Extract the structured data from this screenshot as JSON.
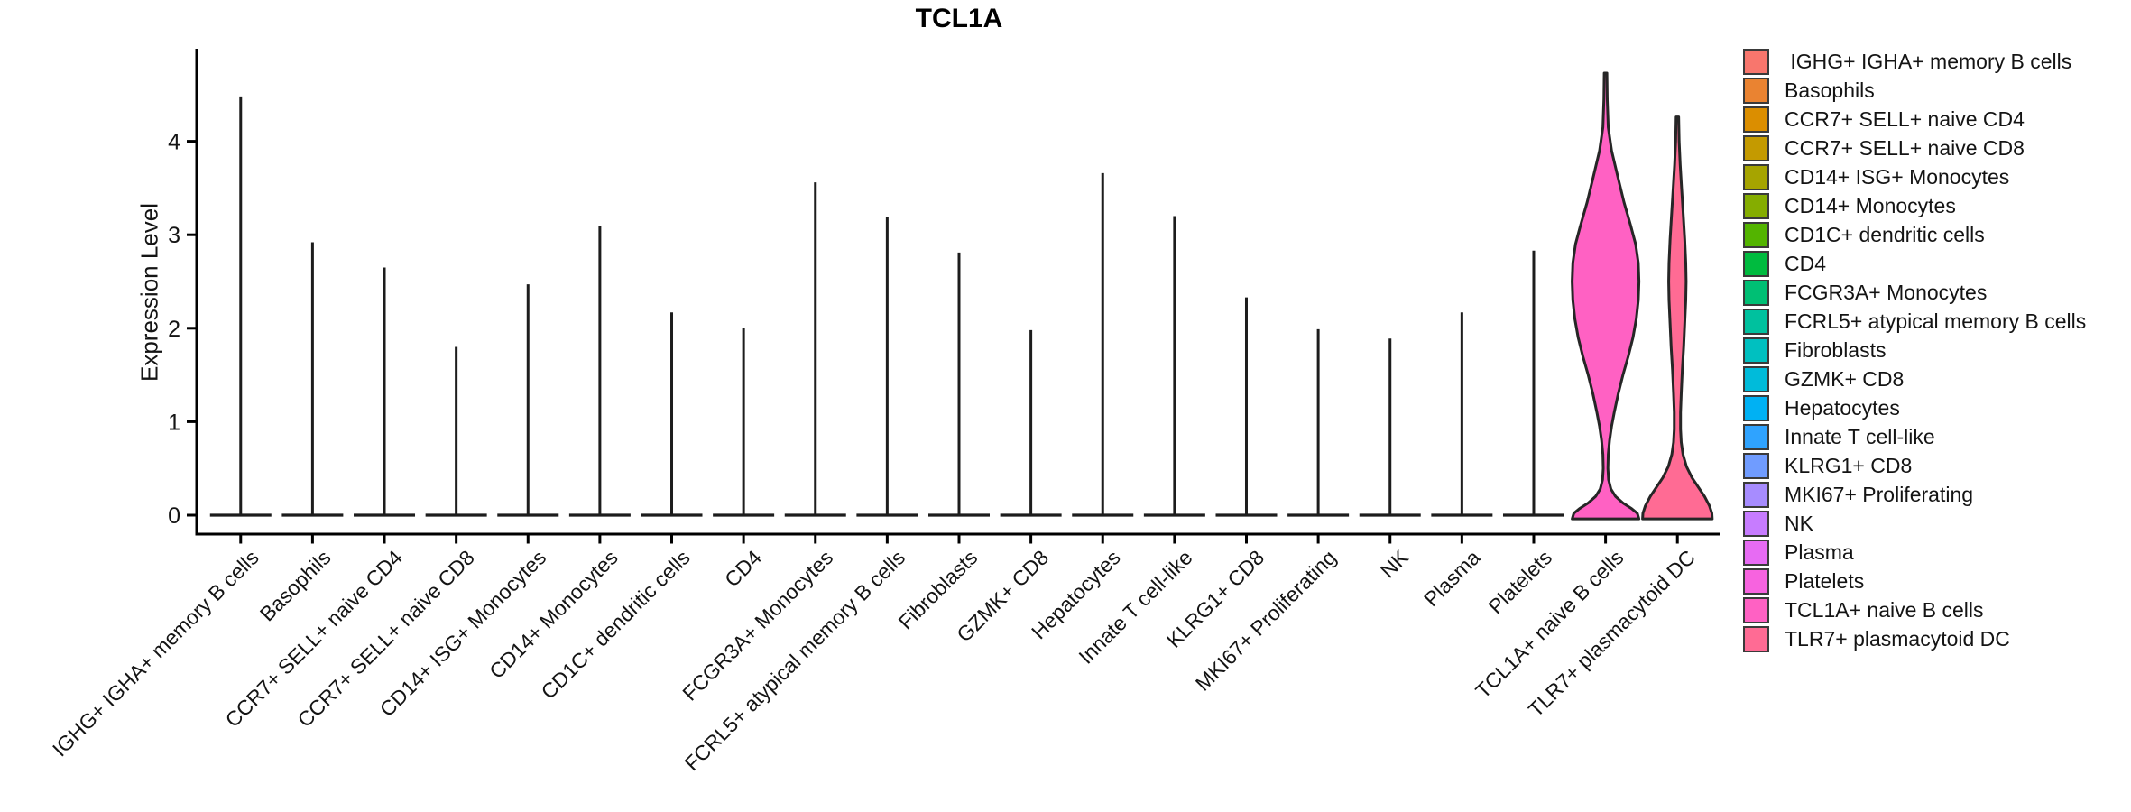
{
  "title": "TCL1A",
  "y_axis": {
    "label": "Expression Level"
  },
  "chart_data": {
    "type": "violin",
    "title": "TCL1A",
    "ylabel": "Expression Level",
    "ylim": [
      -0.2,
      5.0
    ],
    "yticks": [
      0,
      1,
      2,
      3,
      4
    ],
    "grid": false,
    "legend_position": "right",
    "categories": [
      " IGHG+ IGHA+ memory B cells",
      "Basophils",
      "CCR7+ SELL+ naive CD4",
      "CCR7+ SELL+ naive CD8",
      "CD14+ ISG+ Monocytes",
      "CD14+ Monocytes",
      "CD1C+ dendritic cells",
      "CD4",
      "FCGR3A+ Monocytes",
      "FCRL5+ atypical memory B cells",
      "Fibroblasts",
      "GZMK+ CD8",
      "Hepatocytes",
      "Innate T cell-like",
      "KLRG1+ CD8",
      "MKI67+ Proliferating",
      "NK",
      "Plasma",
      "Platelets",
      "TCL1A+ naive B cells",
      "TLR7+ plasmacytoid DC"
    ],
    "series": [
      {
        "name": " IGHG+ IGHA+ memory B cells",
        "color": "#F8766D",
        "max_expression": 4.48,
        "shape": "needle"
      },
      {
        "name": "Basophils",
        "color": "#EA8331",
        "max_expression": 2.92,
        "shape": "needle"
      },
      {
        "name": "CCR7+ SELL+ naive CD4",
        "color": "#DB8E00",
        "max_expression": 2.65,
        "shape": "needle"
      },
      {
        "name": "CCR7+ SELL+ naive CD8",
        "color": "#C49A00",
        "max_expression": 1.8,
        "shape": "needle"
      },
      {
        "name": "CD14+ ISG+ Monocytes",
        "color": "#A6A400",
        "max_expression": 2.47,
        "shape": "needle"
      },
      {
        "name": "CD14+ Monocytes",
        "color": "#85AD00",
        "max_expression": 3.09,
        "shape": "needle"
      },
      {
        "name": "CD1C+ dendritic cells",
        "color": "#53B400",
        "max_expression": 2.17,
        "shape": "needle"
      },
      {
        "name": "CD4",
        "color": "#00BB3F",
        "max_expression": 2.0,
        "shape": "needle"
      },
      {
        "name": "FCGR3A+ Monocytes",
        "color": "#00BF74",
        "max_expression": 3.56,
        "shape": "needle"
      },
      {
        "name": "FCRL5+ atypical memory B cells",
        "color": "#00C19E",
        "max_expression": 3.19,
        "shape": "needle"
      },
      {
        "name": "Fibroblasts",
        "color": "#00C0C0",
        "max_expression": 2.81,
        "shape": "needle"
      },
      {
        "name": "GZMK+ CD8",
        "color": "#00BBDA",
        "max_expression": 1.98,
        "shape": "needle"
      },
      {
        "name": "Hepatocytes",
        "color": "#00B1F3",
        "max_expression": 3.66,
        "shape": "needle"
      },
      {
        "name": "Innate T cell-like",
        "color": "#2FA3FF",
        "max_expression": 3.2,
        "shape": "needle"
      },
      {
        "name": "KLRG1+ CD8",
        "color": "#709CFF",
        "max_expression": 2.33,
        "shape": "needle"
      },
      {
        "name": "MKI67+ Proliferating",
        "color": "#A78CFF",
        "max_expression": 1.99,
        "shape": "needle"
      },
      {
        "name": "NK",
        "color": "#C77CFF",
        "max_expression": 1.89,
        "shape": "needle"
      },
      {
        "name": "Plasma",
        "color": "#E76BF3",
        "max_expression": 2.17,
        "shape": "needle"
      },
      {
        "name": "Platelets",
        "color": "#F763DF",
        "max_expression": 2.83,
        "shape": "needle"
      },
      {
        "name": "TCL1A+ naive B cells",
        "color": "#FF61C3",
        "max_expression": 4.73,
        "shape": "violin",
        "width_frac": 0.93,
        "profile": [
          [
            4.73,
            0.04
          ],
          [
            4.45,
            0.05
          ],
          [
            4.15,
            0.08
          ],
          [
            3.9,
            0.18
          ],
          [
            3.6,
            0.38
          ],
          [
            3.35,
            0.55
          ],
          [
            3.1,
            0.75
          ],
          [
            2.9,
            0.9
          ],
          [
            2.7,
            0.98
          ],
          [
            2.5,
            1.0
          ],
          [
            2.3,
            0.98
          ],
          [
            2.1,
            0.92
          ],
          [
            1.9,
            0.82
          ],
          [
            1.7,
            0.68
          ],
          [
            1.5,
            0.52
          ],
          [
            1.3,
            0.38
          ],
          [
            1.1,
            0.26
          ],
          [
            0.95,
            0.18
          ],
          [
            0.8,
            0.12
          ],
          [
            0.65,
            0.08
          ],
          [
            0.5,
            0.07
          ],
          [
            0.38,
            0.09
          ],
          [
            0.28,
            0.16
          ],
          [
            0.2,
            0.3
          ],
          [
            0.13,
            0.52
          ],
          [
            0.07,
            0.78
          ],
          [
            0.02,
            0.95
          ],
          [
            -0.04,
            1.0
          ]
        ]
      },
      {
        "name": "TLR7+ plasmacytoid DC",
        "color": "#FF6B94",
        "max_expression": 4.26,
        "shape": "violin",
        "width_frac": 0.97,
        "profile": [
          [
            4.26,
            0.035
          ],
          [
            4.0,
            0.05
          ],
          [
            3.75,
            0.08
          ],
          [
            3.5,
            0.12
          ],
          [
            3.2,
            0.17
          ],
          [
            2.95,
            0.21
          ],
          [
            2.7,
            0.24
          ],
          [
            2.5,
            0.25
          ],
          [
            2.3,
            0.24
          ],
          [
            2.05,
            0.21
          ],
          [
            1.8,
            0.18
          ],
          [
            1.55,
            0.14
          ],
          [
            1.3,
            0.11
          ],
          [
            1.1,
            0.09
          ],
          [
            0.92,
            0.09
          ],
          [
            0.78,
            0.11
          ],
          [
            0.65,
            0.16
          ],
          [
            0.52,
            0.26
          ],
          [
            0.4,
            0.42
          ],
          [
            0.3,
            0.6
          ],
          [
            0.2,
            0.78
          ],
          [
            0.1,
            0.92
          ],
          [
            0.02,
            0.99
          ],
          [
            -0.04,
            1.0
          ]
        ]
      }
    ]
  },
  "colors": {
    "axis": "#000000",
    "needle": "#1c1c1c",
    "violin_outline": "#262626",
    "text": "#141414"
  }
}
